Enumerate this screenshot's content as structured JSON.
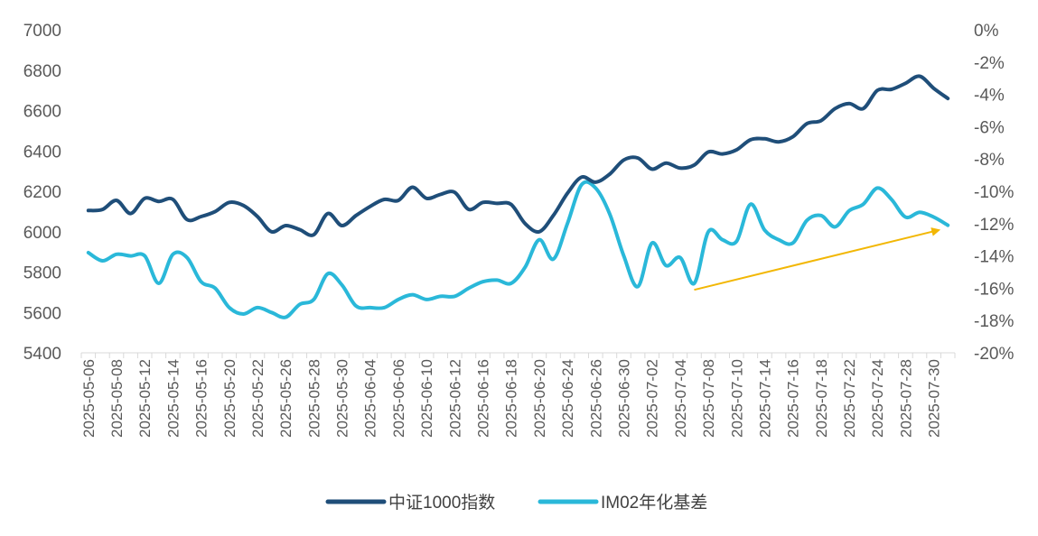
{
  "chart_data": {
    "type": "line",
    "title": "",
    "xlabel": "",
    "ylabel": "",
    "y_left": {
      "min": 5400,
      "max": 7000,
      "ticks": [
        5400,
        5600,
        5800,
        6000,
        6200,
        6400,
        6600,
        6800,
        7000
      ],
      "tick_labels": [
        "5400",
        "5600",
        "5800",
        "6000",
        "6200",
        "6400",
        "6600",
        "6800",
        "7000"
      ]
    },
    "y_right": {
      "min": -20,
      "max": 0,
      "ticks": [
        -20,
        -18,
        -16,
        -14,
        -12,
        -10,
        -8,
        -6,
        -4,
        -2,
        0
      ],
      "tick_labels": [
        "-20%",
        "-18%",
        "-16%",
        "-14%",
        "-12%",
        "-10%",
        "-8%",
        "-6%",
        "-4%",
        "-2%",
        "0%"
      ]
    },
    "x": [
      "2025-05-06",
      "2025-05-07",
      "2025-05-08",
      "2025-05-09",
      "2025-05-12",
      "2025-05-13",
      "2025-05-14",
      "2025-05-15",
      "2025-05-16",
      "2025-05-19",
      "2025-05-20",
      "2025-05-21",
      "2025-05-22",
      "2025-05-23",
      "2025-05-26",
      "2025-05-27",
      "2025-05-28",
      "2025-05-29",
      "2025-05-30",
      "2025-06-03",
      "2025-06-04",
      "2025-06-05",
      "2025-06-06",
      "2025-06-09",
      "2025-06-10",
      "2025-06-11",
      "2025-06-12",
      "2025-06-13",
      "2025-06-16",
      "2025-06-17",
      "2025-06-18",
      "2025-06-19",
      "2025-06-20",
      "2025-06-23",
      "2025-06-24",
      "2025-06-25",
      "2025-06-26",
      "2025-06-27",
      "2025-06-30",
      "2025-07-01",
      "2025-07-02",
      "2025-07-03",
      "2025-07-04",
      "2025-07-07",
      "2025-07-08",
      "2025-07-09",
      "2025-07-10",
      "2025-07-11",
      "2025-07-14",
      "2025-07-15",
      "2025-07-16",
      "2025-07-17",
      "2025-07-18",
      "2025-07-21",
      "2025-07-22",
      "2025-07-23",
      "2025-07-24",
      "2025-07-25",
      "2025-07-28",
      "2025-07-29",
      "2025-07-30",
      "2025-07-31"
    ],
    "x_tick_labels": [
      "2025-05-06",
      "2025-05-08",
      "2025-05-12",
      "2025-05-14",
      "2025-05-16",
      "2025-05-20",
      "2025-05-22",
      "2025-05-26",
      "2025-05-28",
      "2025-05-30",
      "2025-06-04",
      "2025-06-06",
      "2025-06-10",
      "2025-06-12",
      "2025-06-16",
      "2025-06-18",
      "2025-06-20",
      "2025-06-24",
      "2025-06-26",
      "2025-06-30",
      "2025-07-02",
      "2025-07-04",
      "2025-07-08",
      "2025-07-10",
      "2025-07-14",
      "2025-07-16",
      "2025-07-18",
      "2025-07-22",
      "2025-07-24",
      "2025-07-28",
      "2025-07-30"
    ],
    "series": [
      {
        "name": "中证1000指数",
        "axis": "left",
        "color": "#1f4e79",
        "values": [
          6105,
          6110,
          6155,
          6090,
          6165,
          6150,
          6160,
          6060,
          6075,
          6100,
          6145,
          6130,
          6075,
          6000,
          6030,
          6010,
          5985,
          6090,
          6030,
          6080,
          6125,
          6160,
          6155,
          6220,
          6165,
          6185,
          6195,
          6110,
          6145,
          6140,
          6135,
          6040,
          6000,
          6080,
          6190,
          6270,
          6245,
          6285,
          6355,
          6365,
          6310,
          6340,
          6315,
          6330,
          6395,
          6385,
          6405,
          6455,
          6460,
          6445,
          6470,
          6535,
          6550,
          6610,
          6635,
          6610,
          6700,
          6705,
          6735,
          6770,
          6710,
          6660
        ]
      },
      {
        "name": "IM02年化基差",
        "axis": "right",
        "color": "#2ab8d9",
        "values": [
          -13.8,
          -14.3,
          -13.9,
          -14.0,
          -14.0,
          -15.7,
          -13.9,
          -14.1,
          -15.6,
          -16.0,
          -17.2,
          -17.6,
          -17.2,
          -17.5,
          -17.8,
          -17.0,
          -16.7,
          -15.1,
          -15.8,
          -17.1,
          -17.2,
          -17.2,
          -16.7,
          -16.4,
          -16.7,
          -16.5,
          -16.5,
          -16.0,
          -15.6,
          -15.5,
          -15.7,
          -14.7,
          -13.0,
          -14.2,
          -12.0,
          -9.6,
          -9.8,
          -11.4,
          -14.0,
          -15.9,
          -13.2,
          -14.6,
          -14.1,
          -15.7,
          -12.5,
          -13.0,
          -13.1,
          -10.8,
          -12.4,
          -13.0,
          -13.2,
          -11.8,
          -11.5,
          -12.2,
          -11.2,
          -10.8,
          -9.8,
          -10.5,
          -11.6,
          -11.3,
          -11.6,
          -12.1
        ]
      }
    ],
    "annotation": {
      "type": "arrow",
      "color": "#f2b705",
      "from": {
        "x": "2025-07-07",
        "y_pct": -16.1
      },
      "to": {
        "x": "2025-07-31",
        "y_pct": -12.4
      }
    },
    "legend": {
      "position": "bottom"
    }
  }
}
